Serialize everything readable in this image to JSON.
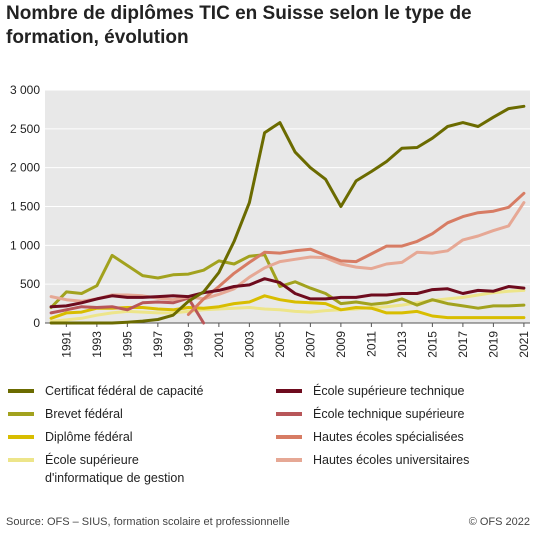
{
  "title": "Nombre de diplômes TIC en Suisse selon le type de formation, évolution",
  "footer": {
    "source": "Source: OFS – SIUS, formation scolaire et professionnelle",
    "copyright": "© OFS 2022"
  },
  "chart_data": {
    "type": "line",
    "title": "Nombre de diplômes TIC en Suisse selon le type de formation, évolution",
    "xlabel": "",
    "ylabel": "",
    "ylim": [
      0,
      3000
    ],
    "yticks": [
      0,
      500,
      1000,
      1500,
      2000,
      2500,
      3000
    ],
    "ytick_labels": [
      "0",
      "500",
      "1 000",
      "1 500",
      "2 000",
      "2 500",
      "3 000"
    ],
    "xlim": [
      1990,
      2021
    ],
    "xtick_labels": [
      "1991",
      "1993",
      "1995",
      "1997",
      "1999",
      "2001",
      "2003",
      "2005",
      "2007",
      "2009",
      "2011",
      "2013",
      "2015",
      "2017",
      "2019",
      "2021"
    ],
    "grid": true,
    "legend_position": "bottom",
    "series": [
      {
        "name": "Certificat fédéral de capacité",
        "color": "#6b6b00",
        "x": [
          1990,
          1991,
          1992,
          1993,
          1994,
          1995,
          1996,
          1997,
          1998,
          1999,
          2000,
          2001,
          2002,
          2003,
          2004,
          2005,
          2006,
          2007,
          2008,
          2009,
          2010,
          2011,
          2012,
          2013,
          2014,
          2015,
          2016,
          2017,
          2018,
          2019,
          2020,
          2021
        ],
        "values": [
          0,
          0,
          0,
          0,
          0,
          10,
          25,
          45,
          100,
          280,
          400,
          650,
          1050,
          1550,
          2450,
          2580,
          2200,
          2000,
          1850,
          1500,
          1830,
          1950,
          2080,
          2250,
          2260,
          2380,
          2530,
          2580,
          2530,
          2650,
          2760,
          2790
        ]
      },
      {
        "name": "Brevet fédéral",
        "color": "#a2a21e",
        "x": [
          1990,
          1991,
          1992,
          1993,
          1994,
          1995,
          1996,
          1997,
          1998,
          1999,
          2000,
          2001,
          2002,
          2003,
          2004,
          2005,
          2006,
          2007,
          2008,
          2009,
          2010,
          2011,
          2012,
          2013,
          2014,
          2015,
          2016,
          2017,
          2018,
          2019,
          2020,
          2021
        ],
        "values": [
          200,
          400,
          380,
          480,
          870,
          740,
          610,
          580,
          620,
          630,
          680,
          800,
          760,
          860,
          880,
          470,
          530,
          450,
          380,
          250,
          270,
          240,
          260,
          310,
          230,
          300,
          250,
          220,
          190,
          220,
          220,
          230
        ]
      },
      {
        "name": "Diplôme fédéral",
        "color": "#d8bd00",
        "x": [
          1990,
          1991,
          1992,
          1993,
          1994,
          1995,
          1996,
          1997,
          1998,
          1999,
          2000,
          2001,
          2002,
          2003,
          2004,
          2005,
          2006,
          2007,
          2008,
          2009,
          2010,
          2011,
          2012,
          2013,
          2014,
          2015,
          2016,
          2017,
          2018,
          2019,
          2020,
          2021
        ],
        "values": [
          60,
          130,
          140,
          190,
          190,
          200,
          200,
          180,
          170,
          200,
          190,
          210,
          250,
          270,
          350,
          300,
          270,
          260,
          250,
          170,
          200,
          190,
          130,
          130,
          150,
          90,
          70,
          70,
          70,
          70,
          70,
          70
        ]
      },
      {
        "name": "École supérieure d'informatique de gestion",
        "color": "#ede58a",
        "x": [
          1990,
          1991,
          1992,
          1993,
          1994,
          1995,
          1996,
          1997,
          1998,
          1999,
          2000,
          2001,
          2002,
          2003,
          2004,
          2005,
          2006,
          2007,
          2008,
          2009,
          2010,
          2011,
          2012,
          2013,
          2014,
          2015,
          2016,
          2017,
          2018,
          2019,
          2020,
          2021
        ],
        "values": [
          20,
          40,
          60,
          100,
          130,
          150,
          140,
          130,
          130,
          150,
          170,
          180,
          190,
          200,
          180,
          170,
          150,
          140,
          160,
          170,
          180,
          200,
          210,
          230,
          260,
          290,
          310,
          330,
          360,
          390,
          410,
          420
        ]
      },
      {
        "name": "École supérieure technique",
        "color": "#6e0b1e",
        "x": [
          1990,
          1991,
          1992,
          1993,
          1994,
          1995,
          1996,
          1997,
          1998,
          1999,
          2000,
          2001,
          2002,
          2003,
          2004,
          2005,
          2006,
          2007,
          2008,
          2009,
          2010,
          2011,
          2012,
          2013,
          2014,
          2015,
          2016,
          2017,
          2018,
          2019,
          2020,
          2021
        ],
        "values": [
          210,
          220,
          260,
          310,
          350,
          330,
          330,
          340,
          350,
          340,
          390,
          420,
          470,
          490,
          570,
          520,
          380,
          310,
          310,
          330,
          330,
          360,
          360,
          380,
          380,
          430,
          440,
          380,
          420,
          410,
          470,
          450
        ]
      },
      {
        "name": "École technique supérieure",
        "color": "#b85659",
        "x": [
          1990,
          1991,
          1992,
          1993,
          1994,
          1995,
          1996,
          1997,
          1998,
          1999,
          2000
        ],
        "values": [
          130,
          170,
          210,
          200,
          210,
          170,
          260,
          270,
          260,
          320,
          0
        ]
      },
      {
        "name": "Hautes écoles spécialisées",
        "color": "#d77c64",
        "x": [
          1999,
          2000,
          2001,
          2002,
          2003,
          2004,
          2005,
          2006,
          2007,
          2008,
          2009,
          2010,
          2011,
          2012,
          2013,
          2014,
          2015,
          2016,
          2017,
          2018,
          2019,
          2020,
          2021
        ],
        "values": [
          110,
          310,
          470,
          640,
          780,
          910,
          900,
          930,
          950,
          870,
          800,
          790,
          890,
          990,
          990,
          1050,
          1150,
          1290,
          1370,
          1420,
          1440,
          1490,
          1670
        ]
      },
      {
        "name": "Hautes écoles universitaires",
        "color": "#e6a895",
        "x": [
          1990,
          1991,
          1992,
          1993,
          1994,
          1995,
          1996,
          1997,
          1998,
          1999,
          2000,
          2001,
          2002,
          2003,
          2004,
          2005,
          2006,
          2007,
          2008,
          2009,
          2010,
          2011,
          2012,
          2013,
          2014,
          2015,
          2016,
          2017,
          2018,
          2019,
          2020,
          2021
        ],
        "values": [
          340,
          300,
          280,
          310,
          360,
          360,
          350,
          320,
          300,
          340,
          310,
          370,
          440,
          590,
          710,
          790,
          820,
          850,
          840,
          760,
          720,
          700,
          760,
          780,
          910,
          900,
          930,
          1070,
          1120,
          1190,
          1250,
          1550
        ]
      }
    ]
  }
}
